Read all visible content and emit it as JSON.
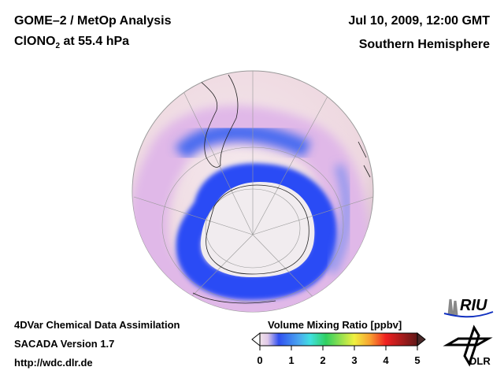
{
  "header": {
    "title_line1": "GOME–2 / MetOp Analysis",
    "species": "ClONO",
    "species_sub": "2",
    "level": " at 55.4 hPa",
    "datetime": "Jul 10, 2009, 12:00 GMT",
    "hemisphere": "Southern Hemisphere"
  },
  "footer": {
    "line1": "4DVar Chemical Data Assimilation",
    "line2": "SACADA Version 1.7",
    "line3": "http://wdc.dlr.de"
  },
  "colorbar": {
    "title": "Volume Mixing Ratio [ppbv]",
    "min": 0,
    "max": 5,
    "ticks": [
      "0",
      "1",
      "2",
      "3",
      "4",
      "5"
    ],
    "colors": [
      "#f2e4ea",
      "#e0c8e8",
      "#3050f0",
      "#4aa8f0",
      "#40e0e0",
      "#30d060",
      "#f0f040",
      "#f8a030",
      "#f02020",
      "#601818"
    ]
  },
  "logos": {
    "riu": "RIU",
    "dlr": "DLR"
  }
}
